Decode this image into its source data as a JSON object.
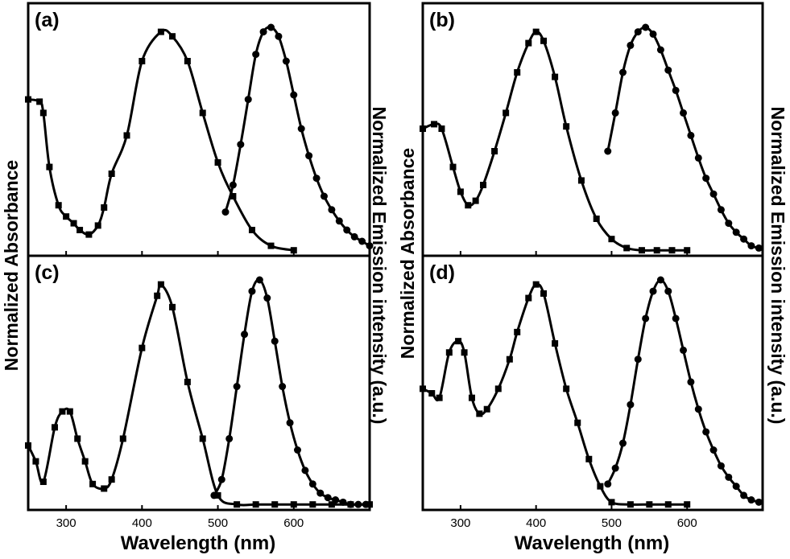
{
  "figure": {
    "y_label_left": "Normalized Absorbance",
    "y_label_right": "Normalized Emission intensity (a.u.)",
    "x_label": "Wavelength (nm)",
    "x_ticks": [
      "300",
      "400",
      "500",
      "600"
    ]
  },
  "chart_data": [
    {
      "type": "line",
      "panel": "(a)",
      "xlabel": "Wavelength (nm)",
      "ylabel": "Normalized Absorbance",
      "y2label": "Normalized Emission intensity (a.u.)",
      "xlim": [
        250,
        700
      ],
      "ylim": [
        0,
        1
      ],
      "grid": false,
      "series": [
        {
          "marker": "square",
          "x": [
            250,
            265,
            270,
            278,
            290,
            300,
            310,
            318,
            330,
            342,
            350,
            360,
            380,
            400,
            425,
            440,
            460,
            480,
            500,
            520,
            545,
            570,
            600
          ],
          "y": [
            0.68,
            0.67,
            0.62,
            0.38,
            0.21,
            0.16,
            0.13,
            0.1,
            0.08,
            0.12,
            0.2,
            0.35,
            0.52,
            0.85,
            0.98,
            0.96,
            0.85,
            0.62,
            0.4,
            0.25,
            0.1,
            0.03,
            0.01
          ]
        },
        {
          "marker": "circle",
          "x": [
            510,
            520,
            530,
            540,
            550,
            560,
            570,
            580,
            590,
            600,
            610,
            620,
            630,
            640,
            650,
            660,
            670,
            680,
            690,
            700
          ],
          "y": [
            0.18,
            0.3,
            0.48,
            0.68,
            0.88,
            0.98,
            1.0,
            0.96,
            0.85,
            0.7,
            0.55,
            0.43,
            0.33,
            0.25,
            0.19,
            0.14,
            0.1,
            0.07,
            0.05,
            0.03
          ]
        }
      ]
    },
    {
      "type": "line",
      "panel": "(b)",
      "xlabel": "Wavelength (nm)",
      "ylabel": "Normalized Absorbance",
      "y2label": "Normalized Emission intensity (a.u.)",
      "xlim": [
        250,
        700
      ],
      "ylim": [
        0,
        1
      ],
      "grid": false,
      "series": [
        {
          "marker": "square",
          "x": [
            250,
            265,
            275,
            290,
            300,
            310,
            320,
            330,
            345,
            360,
            375,
            390,
            400,
            410,
            425,
            440,
            460,
            480,
            500,
            520,
            540,
            560,
            580,
            600
          ],
          "y": [
            0.55,
            0.57,
            0.55,
            0.38,
            0.27,
            0.21,
            0.23,
            0.3,
            0.45,
            0.62,
            0.8,
            0.93,
            0.98,
            0.94,
            0.78,
            0.56,
            0.32,
            0.15,
            0.06,
            0.02,
            0.01,
            0.01,
            0.01,
            0.01
          ]
        },
        {
          "marker": "circle",
          "x": [
            495,
            505,
            515,
            525,
            535,
            545,
            555,
            565,
            575,
            585,
            595,
            605,
            615,
            625,
            635,
            645,
            655,
            665,
            675,
            685,
            695
          ],
          "y": [
            0.45,
            0.62,
            0.8,
            0.92,
            0.98,
            1.0,
            0.97,
            0.9,
            0.81,
            0.72,
            0.62,
            0.52,
            0.42,
            0.33,
            0.26,
            0.19,
            0.13,
            0.09,
            0.06,
            0.03,
            0.02
          ]
        }
      ]
    },
    {
      "type": "line",
      "panel": "(c)",
      "xlabel": "Wavelength (nm)",
      "ylabel": "Normalized Absorbance",
      "y2label": "Normalized Emission intensity (a.u.)",
      "xlim": [
        250,
        700
      ],
      "ylim": [
        0,
        1
      ],
      "grid": false,
      "series": [
        {
          "marker": "square",
          "x": [
            250,
            260,
            270,
            285,
            295,
            305,
            315,
            325,
            335,
            350,
            360,
            375,
            400,
            420,
            425,
            440,
            460,
            480,
            500,
            525,
            550,
            575,
            600,
            625,
            650,
            675,
            700
          ],
          "y": [
            0.27,
            0.2,
            0.11,
            0.35,
            0.42,
            0.42,
            0.3,
            0.2,
            0.1,
            0.08,
            0.12,
            0.3,
            0.7,
            0.93,
            0.98,
            0.88,
            0.55,
            0.3,
            0.05,
            0.01,
            0.01,
            0.01,
            0.01,
            0.01,
            0.01,
            0.01,
            0.01
          ]
        },
        {
          "marker": "circle",
          "x": [
            495,
            505,
            515,
            525,
            535,
            545,
            555,
            565,
            575,
            585,
            595,
            605,
            615,
            625,
            635,
            645,
            655,
            665,
            675,
            685,
            695
          ],
          "y": [
            0.05,
            0.12,
            0.3,
            0.53,
            0.76,
            0.95,
            1.0,
            0.92,
            0.73,
            0.53,
            0.37,
            0.25,
            0.16,
            0.1,
            0.06,
            0.04,
            0.03,
            0.02,
            0.01,
            0.01,
            0.01
          ]
        }
      ]
    },
    {
      "type": "line",
      "panel": "(d)",
      "xlabel": "Wavelength (nm)",
      "ylabel": "Normalized Absorbance",
      "y2label": "Normalized Emission intensity (a.u.)",
      "xlim": [
        250,
        700
      ],
      "ylim": [
        0,
        1
      ],
      "grid": false,
      "series": [
        {
          "marker": "square",
          "x": [
            250,
            262,
            272,
            285,
            297,
            305,
            315,
            325,
            335,
            350,
            365,
            375,
            390,
            400,
            410,
            425,
            440,
            455,
            470,
            485,
            500,
            525,
            550,
            575,
            600
          ],
          "y": [
            0.52,
            0.5,
            0.48,
            0.68,
            0.73,
            0.68,
            0.48,
            0.41,
            0.43,
            0.52,
            0.65,
            0.77,
            0.92,
            0.98,
            0.94,
            0.72,
            0.52,
            0.37,
            0.21,
            0.09,
            0.02,
            0.01,
            0.01,
            0.01,
            0.01
          ]
        },
        {
          "marker": "circle",
          "x": [
            495,
            505,
            515,
            525,
            535,
            545,
            555,
            565,
            575,
            585,
            595,
            605,
            615,
            625,
            635,
            645,
            655,
            665,
            675,
            685,
            695
          ],
          "y": [
            0.1,
            0.17,
            0.28,
            0.45,
            0.65,
            0.83,
            0.95,
            1.0,
            0.95,
            0.83,
            0.69,
            0.55,
            0.43,
            0.33,
            0.25,
            0.18,
            0.13,
            0.09,
            0.05,
            0.03,
            0.02
          ]
        }
      ]
    }
  ]
}
